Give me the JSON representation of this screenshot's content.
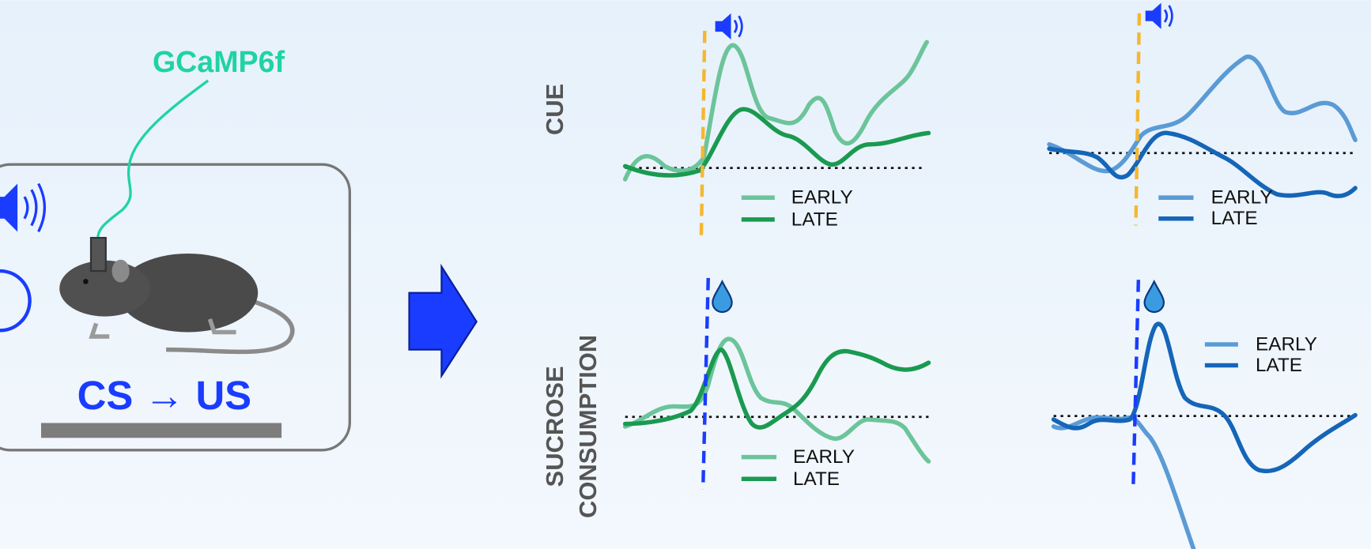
{
  "left_panel": {
    "sensor_label": "GCaMP6f",
    "paradigm_label": "CS → US"
  },
  "row_labels": {
    "cue": "CUE",
    "sucrose": [
      "SUCROSE",
      "CONSUMPTION"
    ]
  },
  "panels": [
    {
      "legend": [
        "EARLY",
        "LATE"
      ]
    },
    {
      "legend": [
        "EARLY",
        "LATE"
      ]
    },
    {
      "legend": [
        "EARLY",
        "LATE"
      ]
    },
    {
      "legend": [
        "EARLY",
        "LATE"
      ]
    }
  ]
}
